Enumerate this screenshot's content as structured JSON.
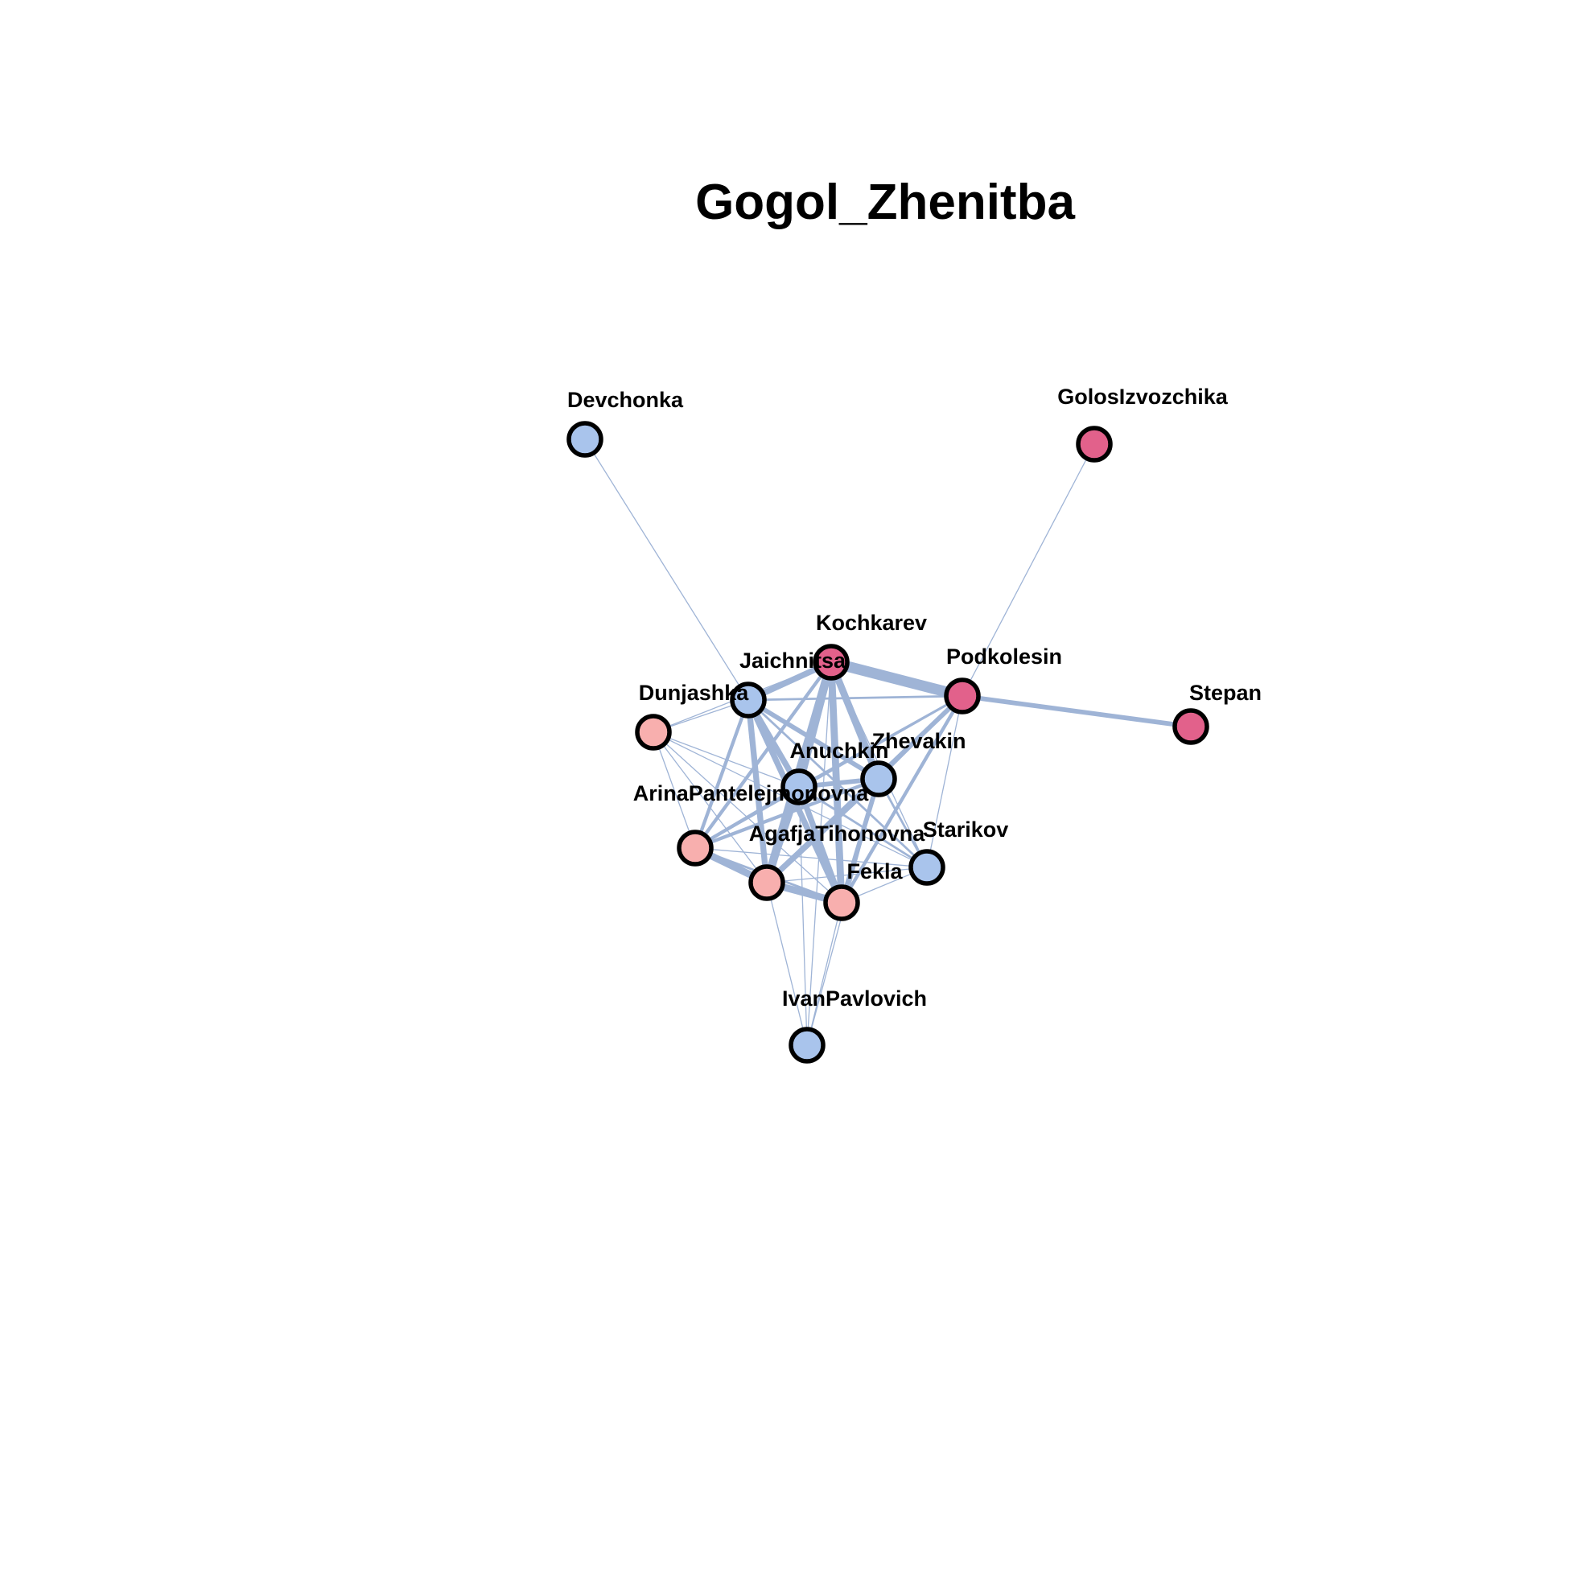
{
  "title": "Gogol_Zhenitba",
  "colors": {
    "edge": "#9fb4d6",
    "group_blue": "#a9c4ec",
    "group_pink": "#f8afae",
    "group_magenta": "#e2618b",
    "node_border": "#000000",
    "background": "#ffffff"
  },
  "nodes": [
    {
      "id": "Devchonka",
      "label": "Devchonka",
      "group": "group_blue"
    },
    {
      "id": "GolosIzvozchika",
      "label": "GolosIzvozchika",
      "group": "group_magenta"
    },
    {
      "id": "Kochkarev",
      "label": "Kochkarev",
      "group": "group_magenta"
    },
    {
      "id": "Jaichnitsa",
      "label": "Jaichnitsa",
      "group": "group_blue"
    },
    {
      "id": "Podkolesin",
      "label": "Podkolesin",
      "group": "group_magenta"
    },
    {
      "id": "Stepan",
      "label": "Stepan",
      "group": "group_magenta"
    },
    {
      "id": "Dunjashka",
      "label": "Dunjashka",
      "group": "group_pink"
    },
    {
      "id": "Anuchkin",
      "label": "Anuchkin",
      "group": "group_blue"
    },
    {
      "id": "Zhevakin",
      "label": "Zhevakin",
      "group": "group_blue"
    },
    {
      "id": "ArinaPantelejmonovna",
      "label": "ArinaPantelejmonovna",
      "group": "group_pink"
    },
    {
      "id": "AgafjaTihonovna",
      "label": "AgafjaTihonovna",
      "group": "group_pink"
    },
    {
      "id": "Starikov",
      "label": "Starikov",
      "group": "group_blue"
    },
    {
      "id": "Fekla",
      "label": "Fekla",
      "group": "group_pink"
    },
    {
      "id": "IvanPavlovich",
      "label": "IvanPavlovich",
      "group": "group_blue"
    }
  ],
  "edges": [
    {
      "source": "Devchonka",
      "target": "Jaichnitsa",
      "weight": 1
    },
    {
      "source": "GolosIzvozchika",
      "target": "Podkolesin",
      "weight": 1
    },
    {
      "source": "Podkolesin",
      "target": "Stepan",
      "weight": 4
    },
    {
      "source": "Kochkarev",
      "target": "Podkolesin",
      "weight": 9
    },
    {
      "source": "Kochkarev",
      "target": "Jaichnitsa",
      "weight": 5
    },
    {
      "source": "Kochkarev",
      "target": "Anuchkin",
      "weight": 6
    },
    {
      "source": "Kochkarev",
      "target": "Zhevakin",
      "weight": 6
    },
    {
      "source": "Kochkarev",
      "target": "AgafjaTihonovna",
      "weight": 7
    },
    {
      "source": "Kochkarev",
      "target": "Fekla",
      "weight": 6
    },
    {
      "source": "Kochkarev",
      "target": "ArinaPantelejmonovna",
      "weight": 3
    },
    {
      "source": "Kochkarev",
      "target": "Starikov",
      "weight": 1
    },
    {
      "source": "Kochkarev",
      "target": "Dunjashka",
      "weight": 1
    },
    {
      "source": "Podkolesin",
      "target": "Jaichnitsa",
      "weight": 2
    },
    {
      "source": "Podkolesin",
      "target": "Anuchkin",
      "weight": 2
    },
    {
      "source": "Podkolesin",
      "target": "Zhevakin",
      "weight": 2
    },
    {
      "source": "Podkolesin",
      "target": "AgafjaTihonovna",
      "weight": 4
    },
    {
      "source": "Podkolesin",
      "target": "Fekla",
      "weight": 3
    },
    {
      "source": "Podkolesin",
      "target": "ArinaPantelejmonovna",
      "weight": 2
    },
    {
      "source": "Podkolesin",
      "target": "Starikov",
      "weight": 1
    },
    {
      "source": "Jaichnitsa",
      "target": "Dunjashka",
      "weight": 1
    },
    {
      "source": "Jaichnitsa",
      "target": "Anuchkin",
      "weight": 5
    },
    {
      "source": "Jaichnitsa",
      "target": "Zhevakin",
      "weight": 4
    },
    {
      "source": "Jaichnitsa",
      "target": "AgafjaTihonovna",
      "weight": 5
    },
    {
      "source": "Jaichnitsa",
      "target": "Fekla",
      "weight": 5
    },
    {
      "source": "Jaichnitsa",
      "target": "ArinaPantelejmonovna",
      "weight": 3
    },
    {
      "source": "Jaichnitsa",
      "target": "Starikov",
      "weight": 2
    },
    {
      "source": "Anuchkin",
      "target": "Zhevakin",
      "weight": 4
    },
    {
      "source": "Anuchkin",
      "target": "AgafjaTihonovna",
      "weight": 5
    },
    {
      "source": "Anuchkin",
      "target": "Fekla",
      "weight": 5
    },
    {
      "source": "Anuchkin",
      "target": "ArinaPantelejmonovna",
      "weight": 3
    },
    {
      "source": "Anuchkin",
      "target": "Starikov",
      "weight": 2
    },
    {
      "source": "Anuchkin",
      "target": "Dunjashka",
      "weight": 1
    },
    {
      "source": "Zhevakin",
      "target": "AgafjaTihonovna",
      "weight": 5
    },
    {
      "source": "Zhevakin",
      "target": "Fekla",
      "weight": 4
    },
    {
      "source": "Zhevakin",
      "target": "ArinaPantelejmonovna",
      "weight": 3
    },
    {
      "source": "Zhevakin",
      "target": "Starikov",
      "weight": 2
    },
    {
      "source": "AgafjaTihonovna",
      "target": "ArinaPantelejmonovna",
      "weight": 6
    },
    {
      "source": "AgafjaTihonovna",
      "target": "Fekla",
      "weight": 6
    },
    {
      "source": "AgafjaTihonovna",
      "target": "Dunjashka",
      "weight": 1
    },
    {
      "source": "AgafjaTihonovna",
      "target": "Starikov",
      "weight": 1
    },
    {
      "source": "AgafjaTihonovna",
      "target": "IvanPavlovich",
      "weight": 1
    },
    {
      "source": "ArinaPantelejmonovna",
      "target": "Fekla",
      "weight": 2
    },
    {
      "source": "ArinaPantelejmonovna",
      "target": "Dunjashka",
      "weight": 1
    },
    {
      "source": "ArinaPantelejmonovna",
      "target": "Starikov",
      "weight": 1
    },
    {
      "source": "Fekla",
      "target": "Dunjashka",
      "weight": 1
    },
    {
      "source": "Fekla",
      "target": "Starikov",
      "weight": 1
    },
    {
      "source": "Fekla",
      "target": "IvanPavlovich",
      "weight": 1
    },
    {
      "source": "Anuchkin",
      "target": "IvanPavlovich",
      "weight": 1
    },
    {
      "source": "Zhevakin",
      "target": "IvanPavlovich",
      "weight": 1
    },
    {
      "source": "Kochkarev",
      "target": "IvanPavlovich",
      "weight": 1
    },
    {
      "source": "Dunjashka",
      "target": "Starikov",
      "weight": 1
    }
  ]
}
